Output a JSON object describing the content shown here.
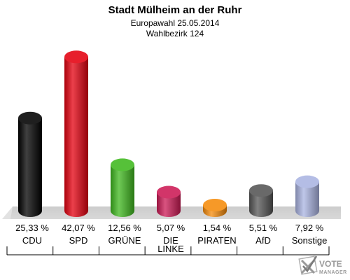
{
  "chart_data": {
    "type": "bar",
    "title": "Stadt Mülheim an der Ruhr",
    "subtitle_1": "Europawahl 25.05.2014",
    "subtitle_2": "Wahlbezirk 124",
    "unit": "%",
    "ylim": [
      0,
      45
    ],
    "categories": [
      {
        "label": [
          "CDU"
        ],
        "value": 25.33,
        "value_label": "25,33 %",
        "color": "#000000"
      },
      {
        "label": [
          "SPD"
        ],
        "value": 42.07,
        "value_label": "42,07 %",
        "color": "#e4000f"
      },
      {
        "label": [
          "GRÜNE"
        ],
        "value": 12.56,
        "value_label": "12,56 %",
        "color": "#3fb81e"
      },
      {
        "label": [
          "DIE",
          "LINKE"
        ],
        "value": 5.07,
        "value_label": "5,07 %",
        "color": "#cc1a55"
      },
      {
        "label": [
          "PIRATEN"
        ],
        "value": 1.54,
        "value_label": "1,54 %",
        "color": "#f58b0b"
      },
      {
        "label": [
          "AfD"
        ],
        "value": 5.51,
        "value_label": "5,51 %",
        "color": "#555555"
      },
      {
        "label": [
          "Sonstige"
        ],
        "value": 7.92,
        "value_label": "7,92 %",
        "color": "#aab4e2"
      }
    ]
  },
  "logo": {
    "line1": "VOTE",
    "line2": "MANAGER",
    "icon": "checkmark-x-icon"
  }
}
